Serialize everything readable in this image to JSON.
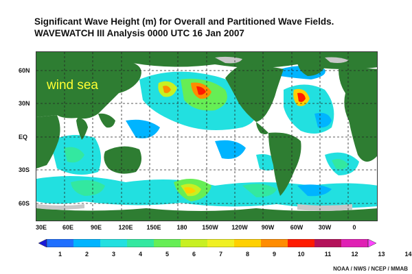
{
  "title": {
    "line1": "Significant Wave Height (m) for Overall and Partitioned Wave Fields.",
    "line2": "WAVEWATCH III Analysis 0000 UTC 16 Jan 2007"
  },
  "map": {
    "overlay_label": "wind sea",
    "lat_labels": [
      "60N",
      "30N",
      "EQ",
      "30S",
      "60S"
    ],
    "lon_labels": [
      "30E",
      "60E",
      "90E",
      "120E",
      "150E",
      "180",
      "150W",
      "120W",
      "90W",
      "60W",
      "30W",
      "0"
    ],
    "colors": {
      "land": "#2e7d32",
      "ice": "#c8c8c8",
      "ocean_calm": "#ffffff",
      "grid": "#222222"
    }
  },
  "colorbar": {
    "labels": [
      "1",
      "2",
      "3",
      "4",
      "5",
      "6",
      "7",
      "8",
      "9",
      "10",
      "11",
      "12",
      "13",
      "14"
    ],
    "colors": [
      "#1a1ad8",
      "#1f6fff",
      "#00b4ff",
      "#22e0e0",
      "#33e8a0",
      "#66ee55",
      "#c8f022",
      "#f0f022",
      "#ffd000",
      "#ff8c00",
      "#ff1a00",
      "#b4125a",
      "#e020b4",
      "#ff44ff"
    ]
  },
  "credit": "NOAA / NWS / NCEP / MMAB"
}
